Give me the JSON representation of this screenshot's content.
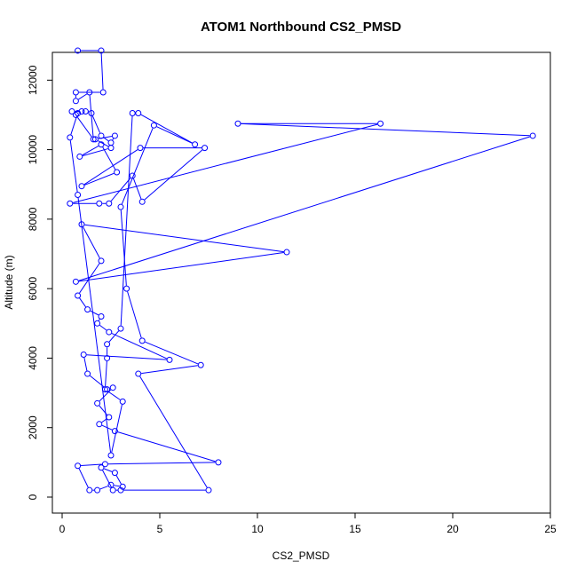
{
  "chart_data": {
    "type": "line",
    "title": "ATOM1 Northbound CS2_PMSD",
    "xlabel": "CS2_PMSD",
    "ylabel": "Altitude (m)",
    "xlim": [
      0,
      25
    ],
    "ylim": [
      0,
      12800
    ],
    "xticks": [
      0,
      5,
      10,
      15,
      20,
      25
    ],
    "yticks": [
      0,
      2000,
      4000,
      6000,
      8000,
      10000,
      12000
    ],
    "grid": false,
    "markers": "open-circle",
    "line_color": "#0000ff",
    "series": [
      {
        "points": [
          [
            0.8,
            12850
          ],
          [
            2.0,
            12850
          ],
          [
            2.1,
            11650
          ],
          [
            0.7,
            11650
          ],
          [
            0.7,
            11400
          ],
          [
            1.4,
            11650
          ],
          [
            1.6,
            10300
          ],
          [
            0.7,
            11000
          ],
          [
            0.5,
            11100
          ],
          [
            1.0,
            11100
          ],
          [
            1.2,
            11100
          ],
          [
            1.5,
            11050
          ],
          [
            2.0,
            10400
          ],
          [
            2.5,
            10200
          ],
          [
            2.7,
            10400
          ],
          [
            1.7,
            10300
          ],
          [
            2.5,
            10050
          ],
          [
            0.9,
            9800
          ],
          [
            2.0,
            10150
          ],
          [
            2.8,
            9350
          ],
          [
            1.0,
            8950
          ],
          [
            4.0,
            10050
          ],
          [
            7.3,
            10050
          ],
          [
            4.1,
            8500
          ],
          [
            3.6,
            9250
          ],
          [
            2.4,
            8450
          ],
          [
            1.9,
            8450
          ],
          [
            0.4,
            8450
          ],
          [
            16.3,
            10750
          ],
          [
            9.0,
            10750
          ],
          [
            24.1,
            10400
          ],
          [
            0.7,
            6200
          ],
          [
            11.5,
            7050
          ],
          [
            1.0,
            7850
          ],
          [
            2.0,
            6800
          ],
          [
            0.8,
            5800
          ],
          [
            1.3,
            5400
          ],
          [
            2.0,
            5200
          ],
          [
            1.8,
            5000
          ],
          [
            2.4,
            4750
          ],
          [
            5.5,
            3950
          ],
          [
            1.1,
            4100
          ],
          [
            1.3,
            3550
          ],
          [
            2.3,
            3100
          ],
          [
            2.6,
            3150
          ],
          [
            1.8,
            2700
          ],
          [
            2.4,
            2300
          ],
          [
            1.9,
            2100
          ],
          [
            2.7,
            1900
          ],
          [
            8.0,
            1000
          ],
          [
            2.2,
            950
          ],
          [
            0.8,
            900
          ],
          [
            1.4,
            200
          ],
          [
            1.8,
            200
          ],
          [
            2.5,
            350
          ],
          [
            3.1,
            300
          ],
          [
            2.7,
            700
          ],
          [
            2.0,
            850
          ],
          [
            2.6,
            200
          ],
          [
            3.0,
            200
          ],
          [
            7.5,
            200
          ],
          [
            3.9,
            3550
          ],
          [
            7.1,
            3800
          ],
          [
            4.1,
            4500
          ],
          [
            3.3,
            6000
          ],
          [
            3.0,
            8350
          ],
          [
            4.7,
            10700
          ],
          [
            6.8,
            10150
          ],
          [
            3.9,
            11050
          ],
          [
            3.6,
            11050
          ],
          [
            3.0,
            4850
          ],
          [
            2.3,
            4400
          ],
          [
            2.3,
            4000
          ],
          [
            2.2,
            3100
          ],
          [
            3.1,
            2750
          ],
          [
            2.5,
            1200
          ],
          [
            0.8,
            8700
          ],
          [
            0.4,
            10350
          ],
          [
            0.8,
            11050
          ]
        ]
      }
    ]
  }
}
